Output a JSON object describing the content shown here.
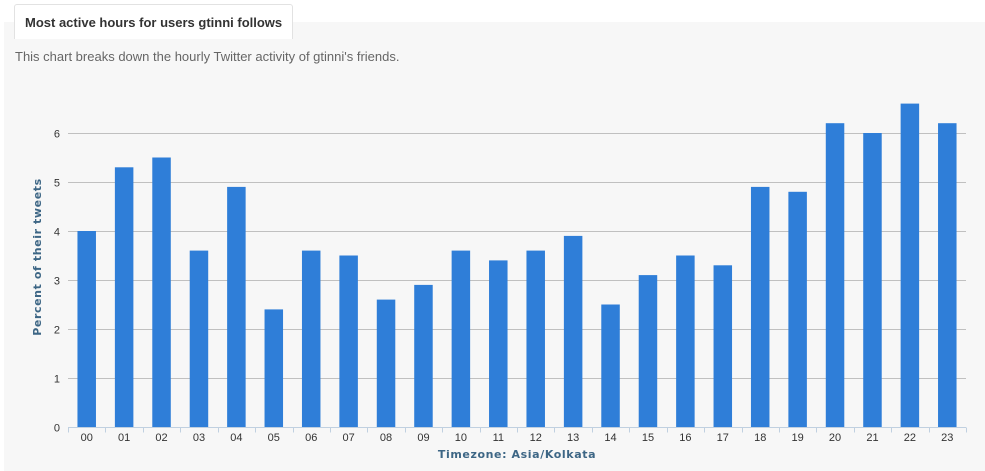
{
  "header": {
    "tab_title": "Most active hours for users gtinni follows",
    "subtitle": "This chart breaks down the hourly Twitter activity of gtinni's friends."
  },
  "chart_data": {
    "type": "bar",
    "title": "",
    "xlabel": "Timezone: Asia/Kolkata",
    "ylabel": "Percent of their tweets",
    "ylim": [
      0,
      7
    ],
    "yticks": [
      0,
      1,
      2,
      3,
      4,
      5,
      6
    ],
    "grid": true,
    "categories": [
      "00",
      "01",
      "02",
      "03",
      "04",
      "05",
      "06",
      "07",
      "08",
      "09",
      "10",
      "11",
      "12",
      "13",
      "14",
      "15",
      "16",
      "17",
      "18",
      "19",
      "20",
      "21",
      "22",
      "23"
    ],
    "values": [
      4.0,
      5.3,
      5.5,
      3.6,
      4.9,
      2.4,
      3.6,
      3.5,
      2.6,
      2.9,
      3.6,
      3.4,
      3.6,
      3.9,
      2.5,
      3.1,
      3.5,
      3.3,
      4.9,
      4.8,
      6.2,
      6.0,
      6.6,
      6.2
    ],
    "bar_color": "#2f7ed8"
  }
}
